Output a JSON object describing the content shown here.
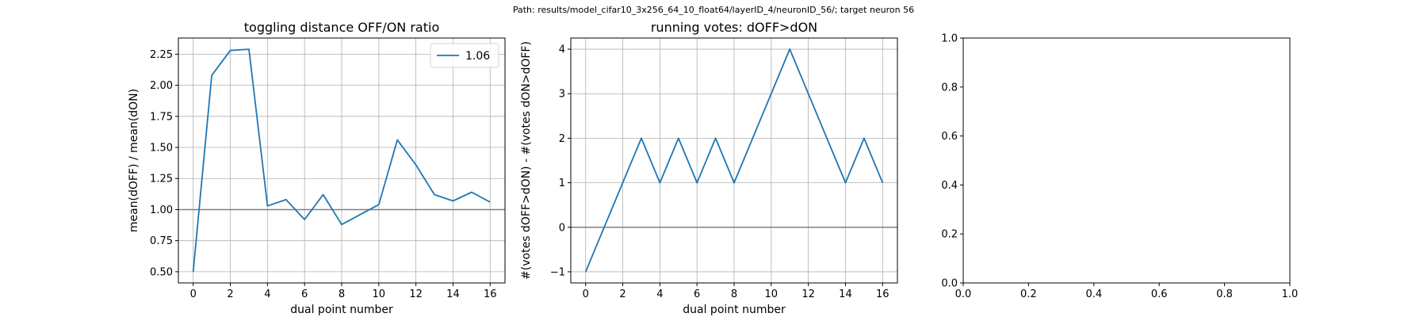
{
  "suptitle": "Path: results/model_cifar10_3x256_64_10_float64/layerID_4/neuronID_56/; target neuron 56",
  "colors": {
    "series": "#1f77b4",
    "refline": "#808080",
    "grid": "#b0b0b0",
    "axis": "#000000"
  },
  "chart_data": [
    {
      "type": "line",
      "title": "toggling distance OFF/ON ratio",
      "xlabel": "dual point number",
      "ylabel": "mean(dOFF) / mean(dON)",
      "xlim": [
        -0.8,
        16.8
      ],
      "ylim": [
        0.41,
        2.38
      ],
      "xticks": [
        0,
        2,
        4,
        6,
        8,
        10,
        12,
        14,
        16
      ],
      "yticks": [
        0.5,
        0.75,
        1.0,
        1.25,
        1.5,
        1.75,
        2.0,
        2.25
      ],
      "ytick_labels": [
        "0.50",
        "0.75",
        "1.00",
        "1.25",
        "1.50",
        "1.75",
        "2.00",
        "2.25"
      ],
      "grid": true,
      "hline": 1.0,
      "legend": {
        "location": "upper right",
        "entries": [
          "1.06"
        ]
      },
      "series": [
        {
          "name": "1.06",
          "x": [
            0,
            1,
            2,
            3,
            4,
            5,
            6,
            7,
            8,
            9,
            10,
            11,
            12,
            13,
            14,
            15,
            16
          ],
          "y": [
            0.5,
            2.08,
            2.28,
            2.29,
            1.03,
            1.08,
            0.92,
            1.12,
            0.88,
            0.96,
            1.04,
            1.56,
            1.36,
            1.12,
            1.07,
            1.14,
            1.06
          ]
        }
      ]
    },
    {
      "type": "line",
      "title": "running votes: dOFF>dON",
      "xlabel": "dual point number",
      "ylabel": "#(votes dOFF>dON) - #(votes dON>dOFF)",
      "xlim": [
        -0.8,
        16.8
      ],
      "ylim": [
        -1.25,
        4.25
      ],
      "xticks": [
        0,
        2,
        4,
        6,
        8,
        10,
        12,
        14,
        16
      ],
      "yticks": [
        -1,
        0,
        1,
        2,
        3,
        4
      ],
      "ytick_labels": [
        "−1",
        "0",
        "1",
        "2",
        "3",
        "4"
      ],
      "grid": true,
      "hline": 0,
      "series": [
        {
          "x": [
            0,
            1,
            2,
            3,
            4,
            5,
            6,
            7,
            8,
            9,
            10,
            11,
            12,
            13,
            14,
            15,
            16
          ],
          "y": [
            -1,
            0,
            1,
            2,
            1,
            2,
            1,
            2,
            1,
            2,
            3,
            4,
            3,
            2,
            1,
            2,
            1
          ]
        }
      ]
    },
    {
      "type": "line",
      "title": "",
      "xlabel": "",
      "ylabel": "",
      "xlim": [
        0,
        1
      ],
      "ylim": [
        0,
        1
      ],
      "xticks": [
        0,
        0.2,
        0.4,
        0.6,
        0.8,
        1.0
      ],
      "xtick_labels": [
        "0.0",
        "0.2",
        "0.4",
        "0.6",
        "0.8",
        "1.0"
      ],
      "yticks": [
        0,
        0.2,
        0.4,
        0.6,
        0.8,
        1.0
      ],
      "ytick_labels": [
        "0.0",
        "0.2",
        "0.4",
        "0.6",
        "0.8",
        "1.0"
      ],
      "grid": false,
      "series": []
    }
  ]
}
